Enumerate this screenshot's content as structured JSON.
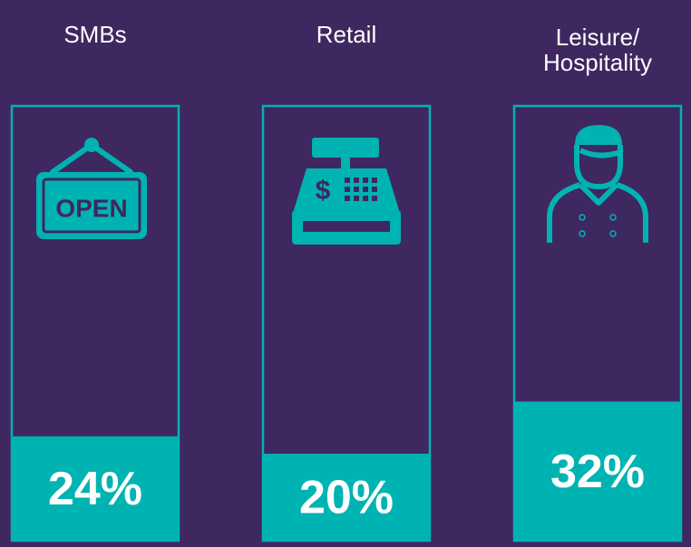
{
  "chart_data": {
    "type": "bar",
    "categories": [
      "SMBs",
      "Retail",
      "Leisure/\nHospitality"
    ],
    "values": [
      24,
      20,
      32
    ],
    "value_labels": [
      "24%",
      "20%",
      "32%"
    ],
    "color": "#00b3b3",
    "ylim": [
      0,
      100
    ]
  }
}
